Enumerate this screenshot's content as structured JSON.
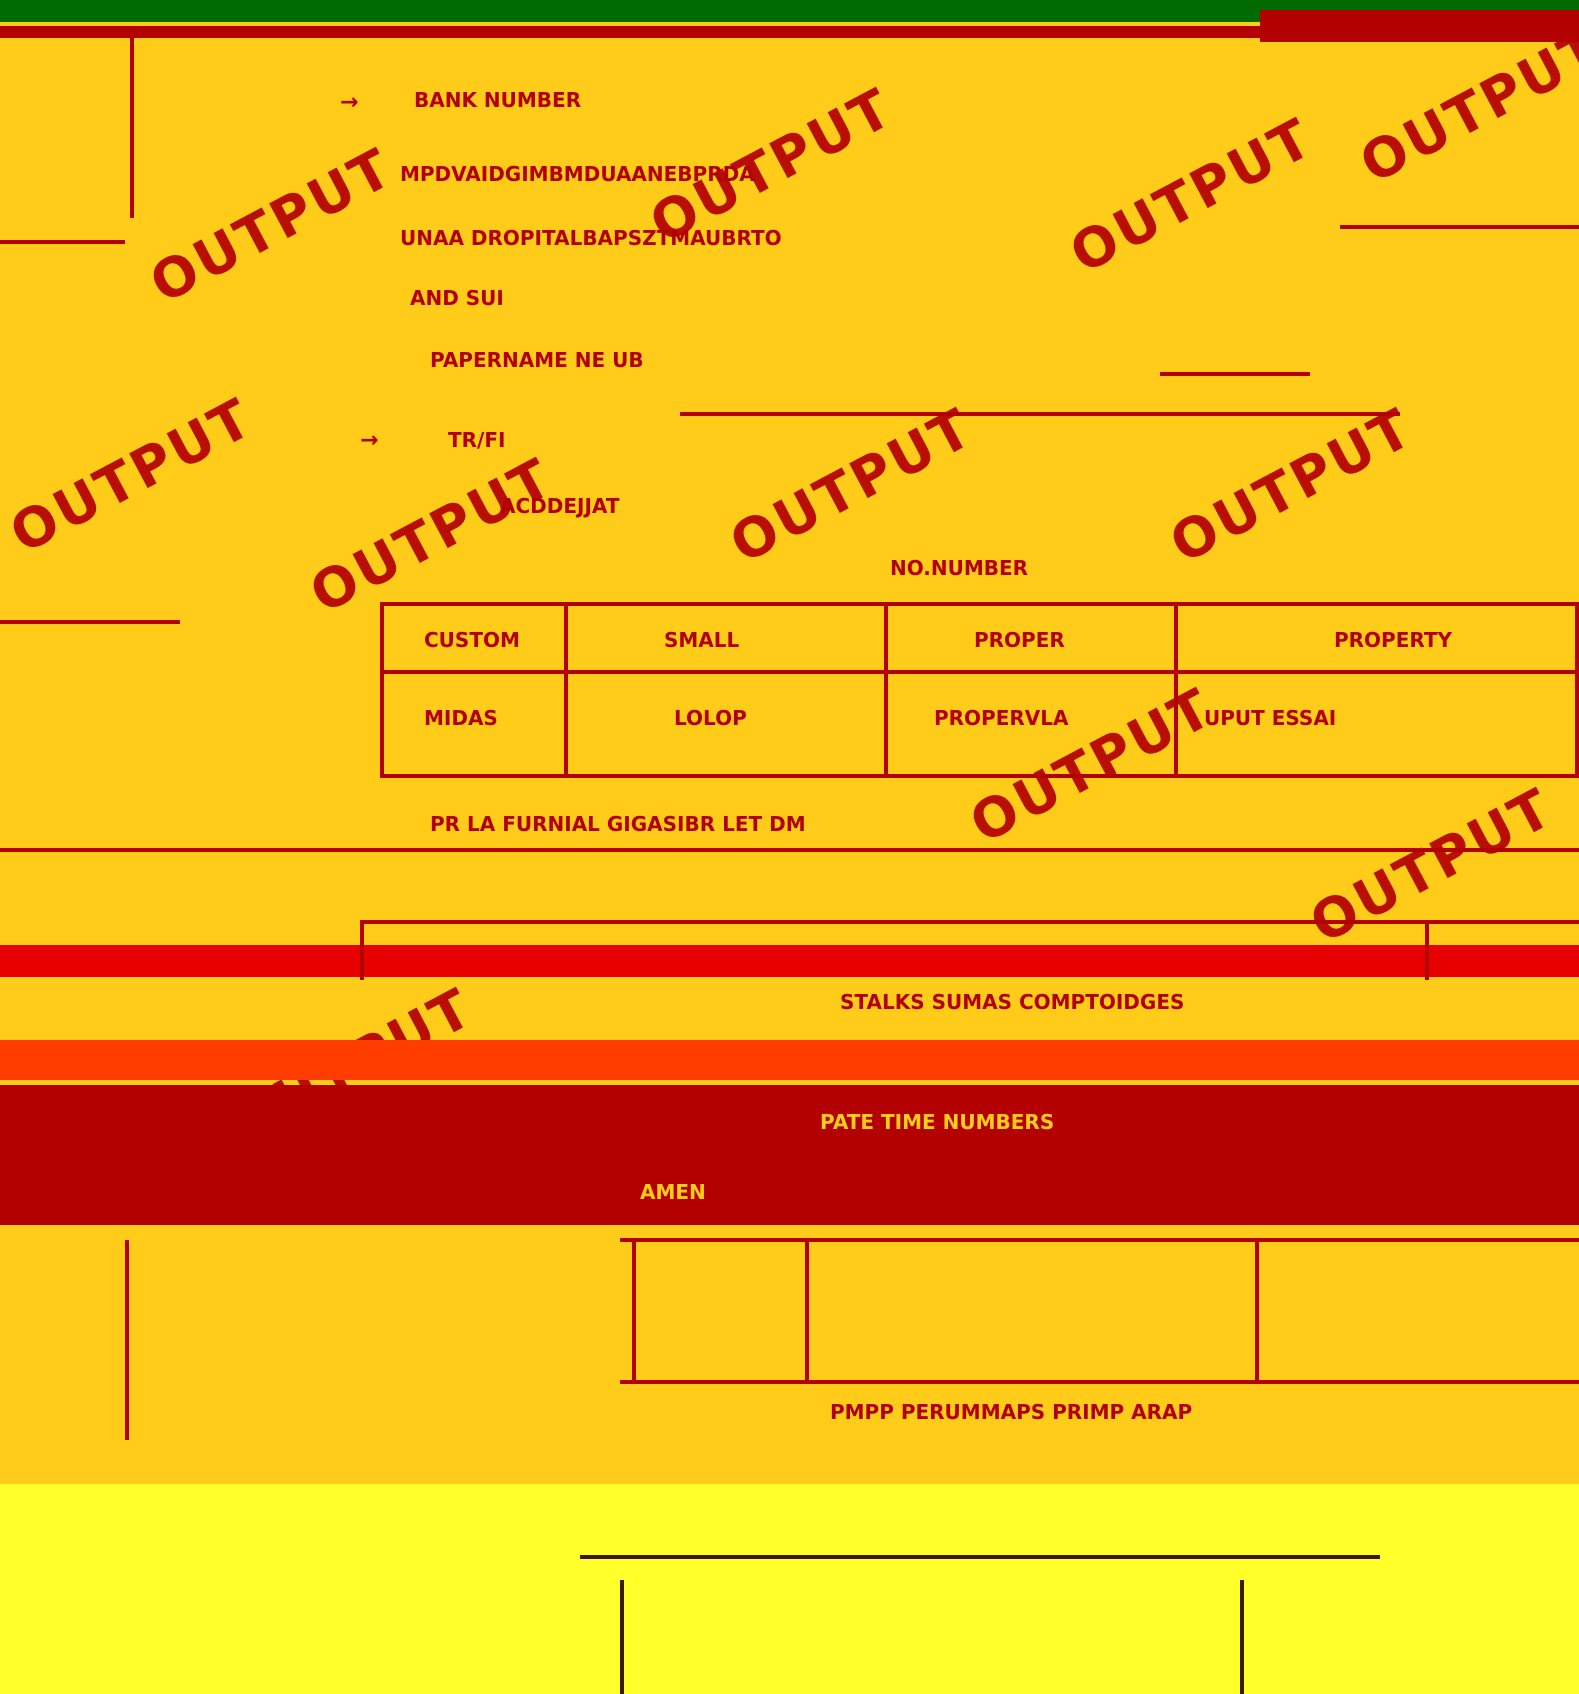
{
  "stamp": {
    "text": "OUTPUT"
  },
  "document": {
    "lines": [
      "BANK NUMBER",
      "MPDVAIDGIMBMDUAANEBPRDA",
      "UNAA  DROPITALBAPSZTMAUBRTO",
      "AND SUI",
      "PAPERNAME NE UB",
      "TR/FI",
      "ACDDEJJAT",
      "NO.NUMBER"
    ],
    "table": {
      "headers": [
        "CUSTOM",
        "SMALL",
        "PROPER",
        "PROPERTY"
      ],
      "cells": [
        "MIDAS",
        "LOLOP",
        "PROPERVLA",
        "UPUT ESSAI"
      ]
    },
    "footer_lines": [
      "PR LA FURNIAL GIGASIBR LET DM",
      "STALKS SUMAS COMPTOIDGES",
      "AMEN",
      "PATE TIME NUMBERS",
      "PMPP PERUMMAPS PRIMP ARAP"
    ]
  }
}
